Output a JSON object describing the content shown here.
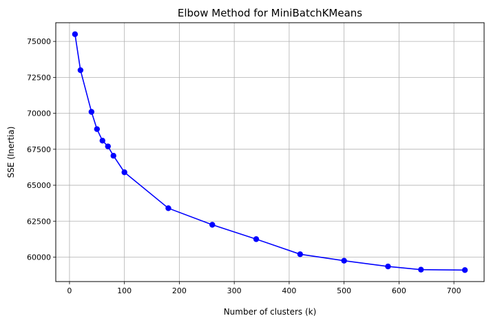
{
  "chart_data": {
    "type": "line",
    "title": "Elbow Method for MiniBatchKMeans",
    "xlabel": "Number of clusters (k)",
    "ylabel": "SSE (Inertia)",
    "xlim": [
      -25,
      755
    ],
    "ylim": [
      58300,
      76300
    ],
    "xticks": [
      0,
      100,
      200,
      300,
      400,
      500,
      600,
      700
    ],
    "yticks": [
      60000,
      62500,
      65000,
      67500,
      70000,
      72500,
      75000
    ],
    "grid": true,
    "series": [
      {
        "color": "#0000ff",
        "marker": "circle",
        "x": [
          10,
          20,
          40,
          50,
          60,
          70,
          80,
          100,
          180,
          260,
          340,
          420,
          500,
          580,
          640,
          720
        ],
        "y": [
          75500,
          73000,
          70100,
          68900,
          68100,
          67700,
          67050,
          65900,
          63400,
          62250,
          61250,
          60200,
          59750,
          59350,
          59130,
          59100
        ]
      }
    ]
  }
}
